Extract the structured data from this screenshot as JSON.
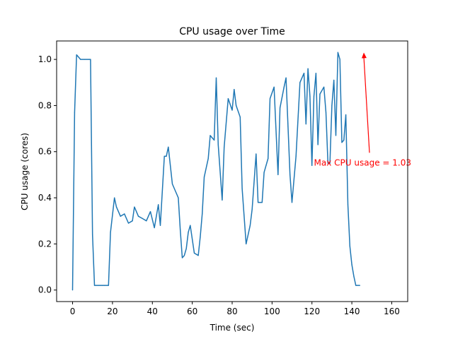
{
  "chart_data": {
    "type": "line",
    "title": "CPU usage over Time",
    "xlabel": "Time (sec)",
    "ylabel": "CPU usage (cores)",
    "xlim": [
      -8,
      168
    ],
    "ylim": [
      -0.05,
      1.08
    ],
    "xticks": [
      0,
      20,
      40,
      60,
      80,
      100,
      120,
      140,
      160
    ],
    "xtick_labels": [
      "0",
      "20",
      "40",
      "60",
      "80",
      "100",
      "120",
      "140",
      "160"
    ],
    "yticks": [
      0.0,
      0.2,
      0.4,
      0.6,
      0.8,
      1.0
    ],
    "ytick_labels": [
      "0.0",
      "0.2",
      "0.4",
      "0.6",
      "0.8",
      "1.0"
    ],
    "grid": false,
    "line_color": "#1f77b4",
    "series": [
      {
        "points": [
          [
            0,
            0.0
          ],
          [
            1,
            0.77
          ],
          [
            2,
            1.02
          ],
          [
            4,
            1.0
          ],
          [
            6,
            1.0
          ],
          [
            8,
            1.0
          ],
          [
            9,
            1.0
          ],
          [
            10,
            0.24
          ],
          [
            11,
            0.02
          ],
          [
            13,
            0.02
          ],
          [
            14,
            0.02
          ],
          [
            15,
            0.02
          ],
          [
            16,
            0.02
          ],
          [
            18,
            0.02
          ],
          [
            19,
            0.25
          ],
          [
            21,
            0.4
          ],
          [
            22,
            0.36
          ],
          [
            24,
            0.32
          ],
          [
            26,
            0.33
          ],
          [
            28,
            0.29
          ],
          [
            30,
            0.3
          ],
          [
            31,
            0.36
          ],
          [
            33,
            0.32
          ],
          [
            35,
            0.31
          ],
          [
            37,
            0.3
          ],
          [
            39,
            0.34
          ],
          [
            41,
            0.27
          ],
          [
            43,
            0.37
          ],
          [
            44,
            0.28
          ],
          [
            46,
            0.58
          ],
          [
            47,
            0.58
          ],
          [
            48,
            0.62
          ],
          [
            50,
            0.46
          ],
          [
            52,
            0.42
          ],
          [
            53,
            0.4
          ],
          [
            54,
            0.26
          ],
          [
            55,
            0.14
          ],
          [
            56,
            0.15
          ],
          [
            57,
            0.18
          ],
          [
            58,
            0.25
          ],
          [
            59,
            0.28
          ],
          [
            61,
            0.16
          ],
          [
            63,
            0.15
          ],
          [
            64,
            0.23
          ],
          [
            65,
            0.33
          ],
          [
            66,
            0.49
          ],
          [
            68,
            0.57
          ],
          [
            69,
            0.67
          ],
          [
            71,
            0.65
          ],
          [
            72,
            0.92
          ],
          [
            73,
            0.63
          ],
          [
            75,
            0.39
          ],
          [
            76,
            0.62
          ],
          [
            78,
            0.83
          ],
          [
            80,
            0.78
          ],
          [
            81,
            0.87
          ],
          [
            82,
            0.8
          ],
          [
            84,
            0.75
          ],
          [
            85,
            0.44
          ],
          [
            87,
            0.2
          ],
          [
            89,
            0.28
          ],
          [
            90,
            0.35
          ],
          [
            92,
            0.59
          ],
          [
            93,
            0.38
          ],
          [
            94,
            0.38
          ],
          [
            95,
            0.38
          ],
          [
            96,
            0.51
          ],
          [
            98,
            0.57
          ],
          [
            99,
            0.83
          ],
          [
            101,
            0.88
          ],
          [
            103,
            0.5
          ],
          [
            104,
            0.79
          ],
          [
            106,
            0.88
          ],
          [
            107,
            0.92
          ],
          [
            108,
            0.71
          ],
          [
            109,
            0.5
          ],
          [
            110,
            0.38
          ],
          [
            112,
            0.58
          ],
          [
            114,
            0.9
          ],
          [
            116,
            0.94
          ],
          [
            117,
            0.72
          ],
          [
            118,
            0.96
          ],
          [
            119,
            0.84
          ],
          [
            120,
            0.54
          ],
          [
            121,
            0.84
          ],
          [
            122,
            0.94
          ],
          [
            123,
            0.63
          ],
          [
            124,
            0.85
          ],
          [
            126,
            0.88
          ],
          [
            127,
            0.77
          ],
          [
            128,
            0.55
          ],
          [
            129,
            0.55
          ],
          [
            130,
            0.8
          ],
          [
            131,
            0.91
          ],
          [
            132,
            0.67
          ],
          [
            133,
            1.03
          ],
          [
            134,
            1.0
          ],
          [
            135,
            0.64
          ],
          [
            136,
            0.65
          ],
          [
            137,
            0.76
          ],
          [
            138,
            0.37
          ],
          [
            139,
            0.19
          ],
          [
            140,
            0.11
          ],
          [
            141,
            0.06
          ],
          [
            142,
            0.02
          ],
          [
            144,
            0.02
          ]
        ]
      }
    ],
    "annotation": {
      "text": "Max CPU usage = 1.03",
      "color": "#ff0000",
      "xy": [
        146,
        1.03
      ],
      "xytext": [
        121,
        0.54
      ]
    }
  }
}
